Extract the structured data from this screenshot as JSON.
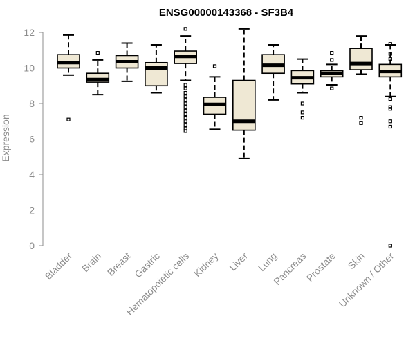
{
  "chart_data": {
    "type": "box",
    "title": "ENSG00000143368 - SF3B4",
    "ylabel": "Expression",
    "ylim": [
      0,
      12.2
    ],
    "yticks": [
      0,
      2,
      4,
      6,
      8,
      10,
      12
    ],
    "box_color": "#efe8d4",
    "categories": [
      "Bladder",
      "Brain",
      "Breast",
      "Gastric",
      "Hematopoietic cells",
      "Kidney",
      "Liver",
      "Lung",
      "Pancreas",
      "Prostate",
      "Skin",
      "Unknown / Other"
    ],
    "boxes": [
      {
        "name": "Bladder",
        "whislo": 9.6,
        "q1": 10.0,
        "med": 10.3,
        "q3": 10.75,
        "whishi": 11.85,
        "fliers": [
          7.1
        ]
      },
      {
        "name": "Brain",
        "whislo": 8.5,
        "q1": 9.2,
        "med": 9.35,
        "q3": 9.7,
        "whishi": 10.45,
        "fliers": [
          10.85
        ]
      },
      {
        "name": "Breast",
        "whislo": 9.25,
        "q1": 10.0,
        "med": 10.35,
        "q3": 10.7,
        "whishi": 11.4,
        "fliers": []
      },
      {
        "name": "Gastric",
        "whislo": 8.6,
        "q1": 9.0,
        "med": 10.0,
        "q3": 10.3,
        "whishi": 11.3,
        "fliers": []
      },
      {
        "name": "Hematopoietic cells",
        "whislo": 9.3,
        "q1": 10.25,
        "med": 10.65,
        "q3": 10.95,
        "whishi": 11.8,
        "fliers": [
          12.2,
          9.05,
          8.85,
          8.6,
          8.4,
          8.2,
          8.0,
          7.8,
          7.6,
          7.4,
          7.2,
          7.0,
          6.8,
          6.6,
          6.45
        ]
      },
      {
        "name": "Kidney",
        "whislo": 6.55,
        "q1": 7.4,
        "med": 7.95,
        "q3": 8.35,
        "whishi": 9.5,
        "fliers": [
          10.1
        ]
      },
      {
        "name": "Liver",
        "whislo": 4.9,
        "q1": 6.5,
        "med": 7.0,
        "q3": 9.3,
        "whishi": 12.2,
        "fliers": []
      },
      {
        "name": "Lung",
        "whislo": 8.2,
        "q1": 9.7,
        "med": 10.15,
        "q3": 10.75,
        "whishi": 11.3,
        "fliers": []
      },
      {
        "name": "Pancreas",
        "whislo": 8.6,
        "q1": 9.1,
        "med": 9.45,
        "q3": 9.85,
        "whishi": 10.5,
        "fliers": [
          8.0,
          7.5,
          7.2
        ]
      },
      {
        "name": "Prostate",
        "whislo": 9.05,
        "q1": 9.5,
        "med": 9.7,
        "q3": 9.85,
        "whishi": 10.2,
        "fliers": [
          10.85,
          10.45,
          8.85
        ]
      },
      {
        "name": "Skin",
        "whislo": 9.65,
        "q1": 9.9,
        "med": 10.25,
        "q3": 11.1,
        "whishi": 11.8,
        "fliers": [
          7.2,
          6.9
        ]
      },
      {
        "name": "Unknown / Other",
        "whislo": 8.4,
        "q1": 9.5,
        "med": 9.8,
        "q3": 10.2,
        "whishi": 11.3,
        "fliers": [
          11.35,
          10.8,
          10.5,
          8.25,
          7.8,
          7.7,
          7.0,
          6.7,
          0.0
        ]
      }
    ]
  }
}
